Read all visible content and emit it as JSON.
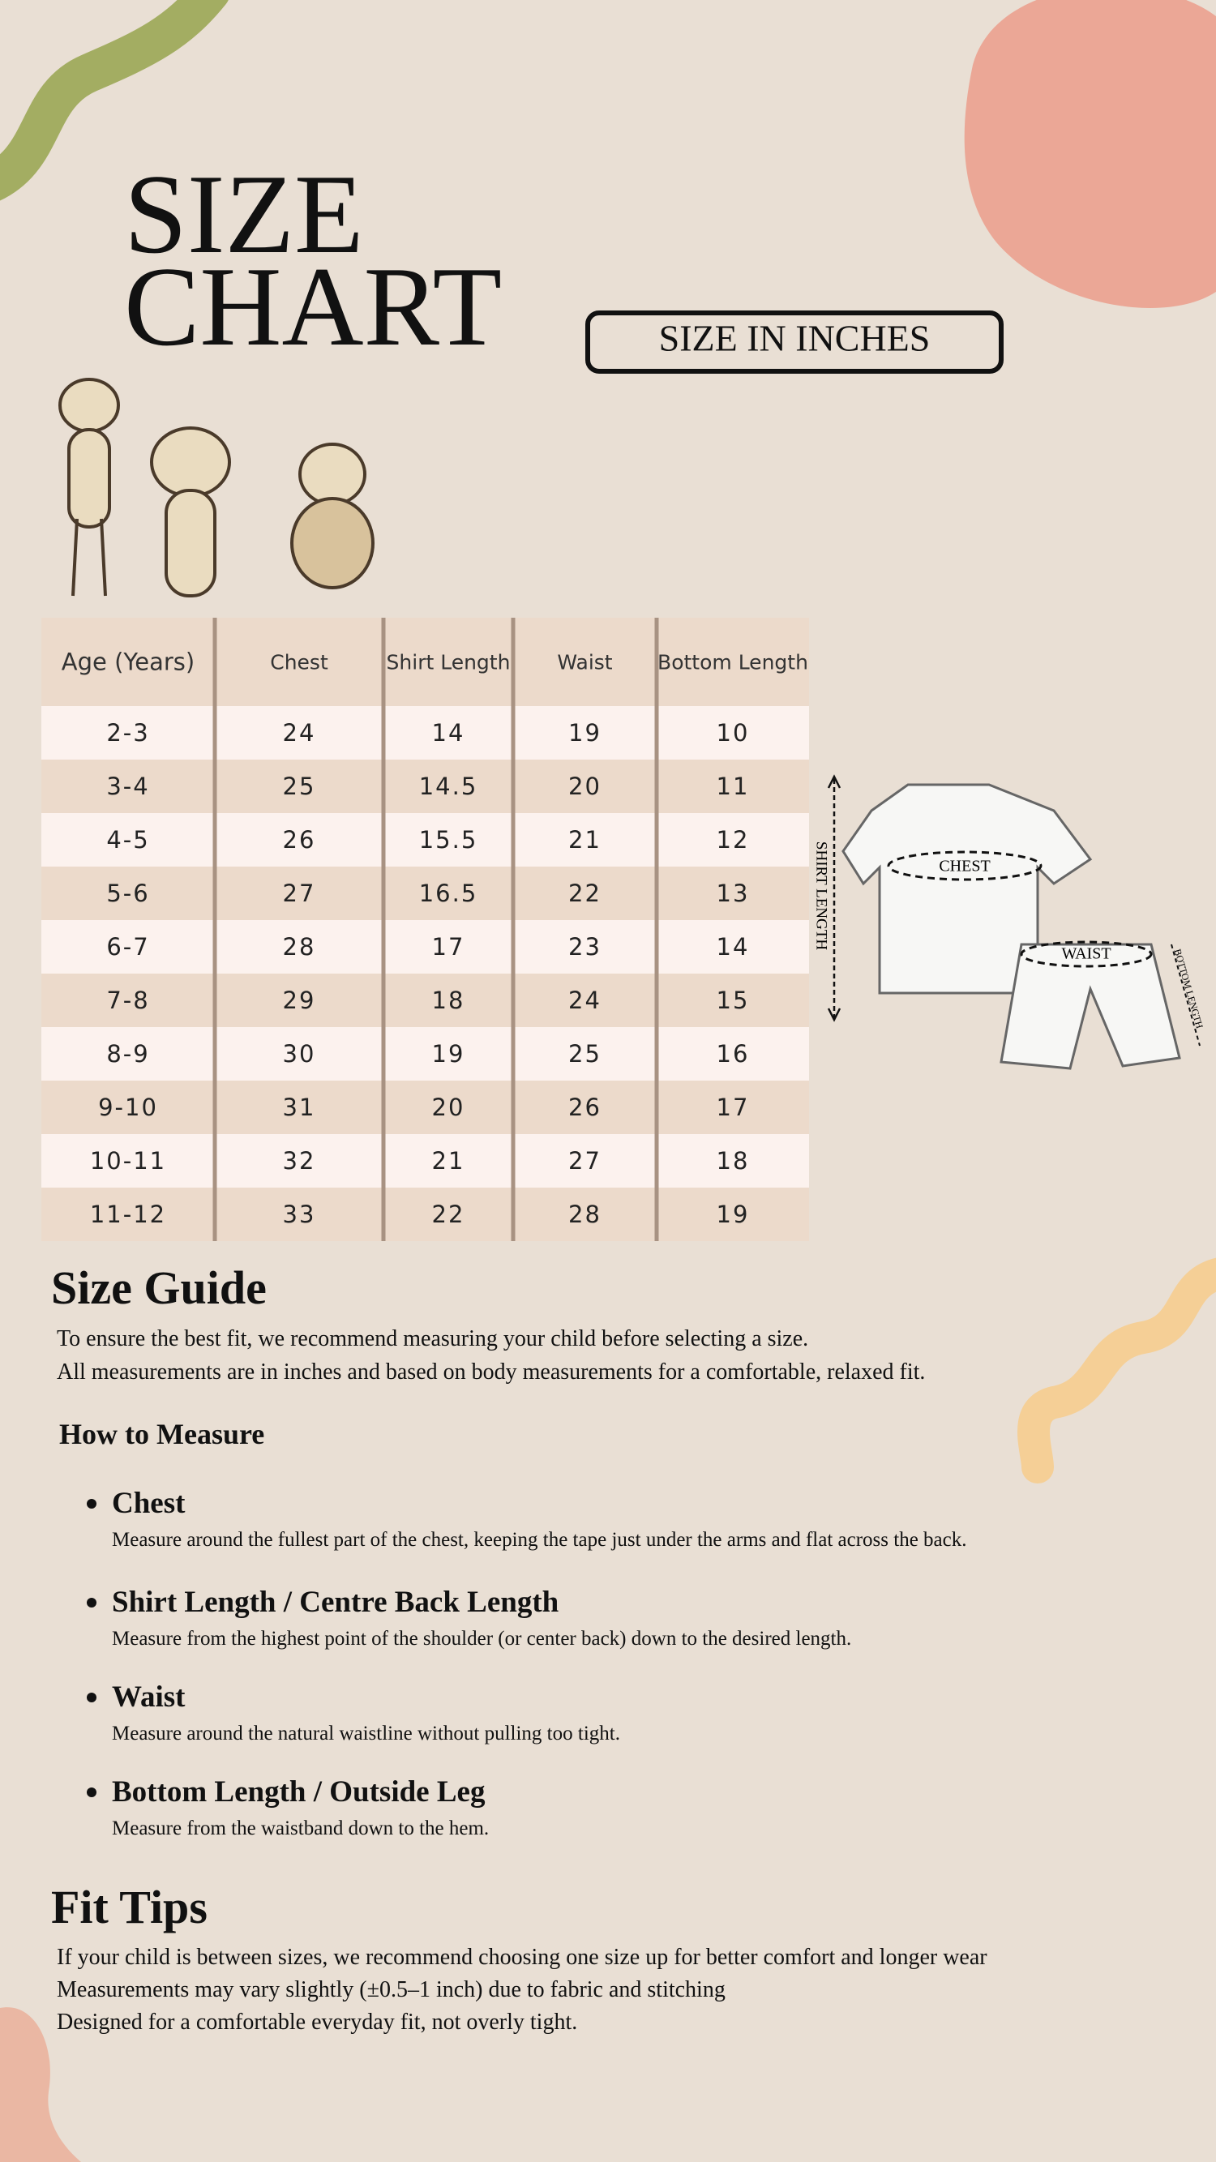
{
  "header": {
    "title_lines": [
      "SIZE",
      "CHART"
    ],
    "badge": "SIZE IN INCHES"
  },
  "table": {
    "headers": [
      "Age (Years)",
      "Chest",
      "Shirt Length",
      "Waist",
      "Bottom Length"
    ],
    "rows": [
      [
        "2-3",
        "24",
        "14",
        "19",
        "10"
      ],
      [
        "3-4",
        "25",
        "14.5",
        "20",
        "11"
      ],
      [
        "4-5",
        "26",
        "15.5",
        "21",
        "12"
      ],
      [
        "5-6",
        "27",
        "16.5",
        "22",
        "13"
      ],
      [
        "6-7",
        "28",
        "17",
        "23",
        "14"
      ],
      [
        "7-8",
        "29",
        "18",
        "24",
        "15"
      ],
      [
        "8-9",
        "30",
        "19",
        "25",
        "16"
      ],
      [
        "9-10",
        "31",
        "20",
        "26",
        "17"
      ],
      [
        "10-11",
        "32",
        "21",
        "27",
        "18"
      ],
      [
        "11-12",
        "33",
        "22",
        "28",
        "19"
      ]
    ]
  },
  "diagram": {
    "labels": [
      "SHIRT LENGTH",
      "CHEST",
      "WAIST",
      "BOTTOM LENGTH"
    ]
  },
  "size_guide": {
    "title": "Size Guide",
    "paragraphs": [
      "To ensure the best fit, we recommend measuring your child before selecting a size.",
      "All measurements are in inches and based on body measurements for a comfortable, relaxed fit."
    ]
  },
  "how_to_measure": {
    "title": "How to Measure",
    "items": [
      {
        "name": "Chest",
        "description": "Measure around the fullest part of the chest, keeping the tape just under the arms and flat across the back."
      },
      {
        "name": "Shirt Length / Centre Back Length",
        "description": "Measure from the highest point of the shoulder (or center back) down to the desired length."
      },
      {
        "name": "Waist",
        "description": "Measure around the natural waistline without pulling too tight."
      },
      {
        "name": "Bottom Length / Outside Leg",
        "description": "Measure from the waistband down to the hem."
      }
    ]
  },
  "fit_tips": {
    "title": "Fit Tips",
    "lines": [
      "If your child is between sizes, we recommend choosing one size up for better comfort and longer wear",
      "Measurements may vary slightly (±0.5–1 inch) due to fabric and stitching",
      "Designed for a comfortable everyday fit, not overly tight."
    ]
  }
}
